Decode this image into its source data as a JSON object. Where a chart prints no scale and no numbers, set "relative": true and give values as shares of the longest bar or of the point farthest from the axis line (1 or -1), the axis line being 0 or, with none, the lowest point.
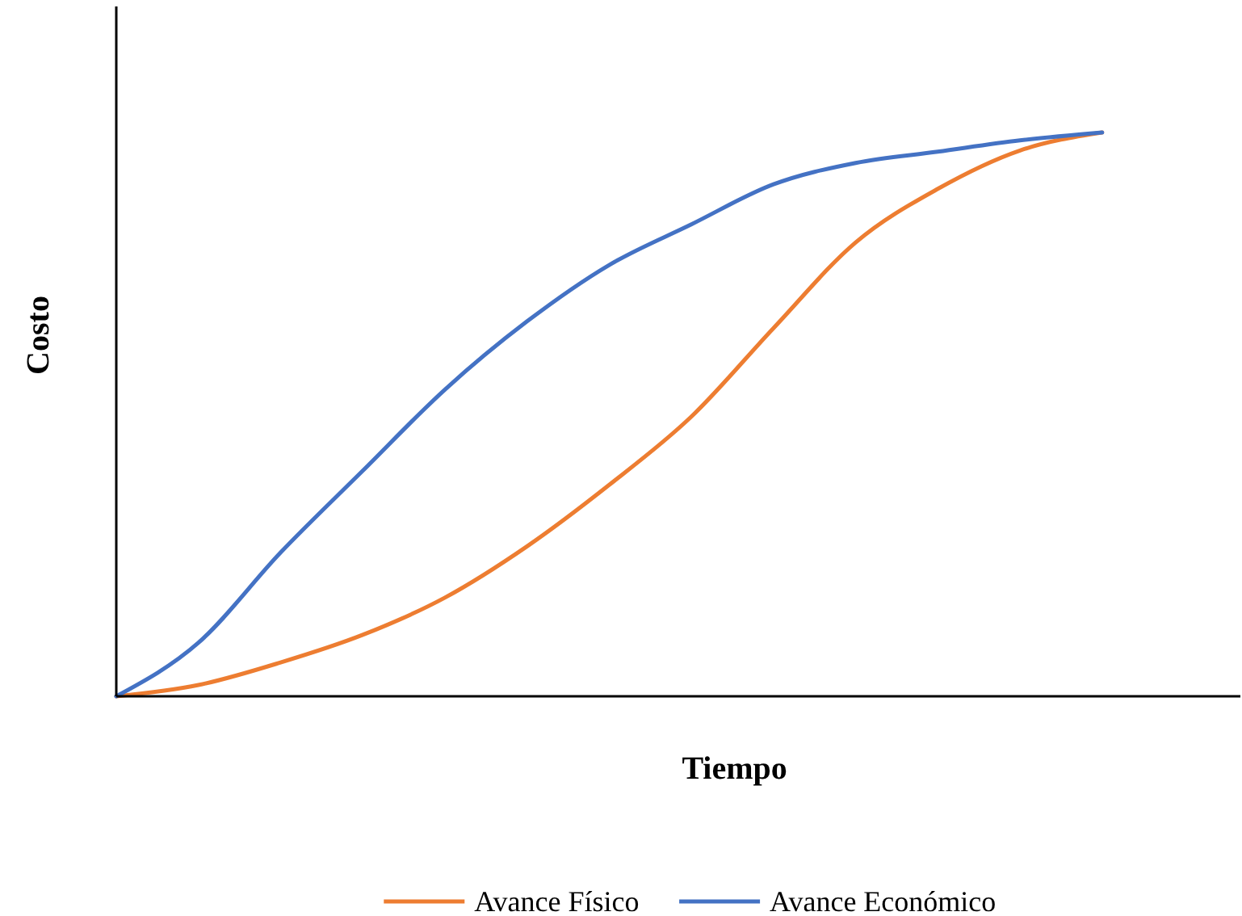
{
  "chart_data": {
    "type": "line",
    "relative": true,
    "xlabel": "Tiempo",
    "ylabel": "Costo",
    "legend": "bottom",
    "line_style": "solid",
    "categories": [
      null,
      null,
      null,
      null,
      null,
      null,
      null,
      null,
      null,
      null,
      null,
      null,
      null
    ],
    "series": [
      {
        "name": "Avance Físico",
        "color": "#ed7d31",
        "values": [
          0,
          0.02,
          0.06,
          0.109,
          0.175,
          0.266,
          0.375,
          0.496,
          0.653,
          0.805,
          0.9,
          0.968,
          1
        ]
      },
      {
        "name": "Avance Económico",
        "color": "#4472c4",
        "values": [
          0,
          0.095,
          0.255,
          0.4,
          0.544,
          0.665,
          0.765,
          0.837,
          0.908,
          0.946,
          0.966,
          0.986,
          1
        ]
      }
    ]
  }
}
